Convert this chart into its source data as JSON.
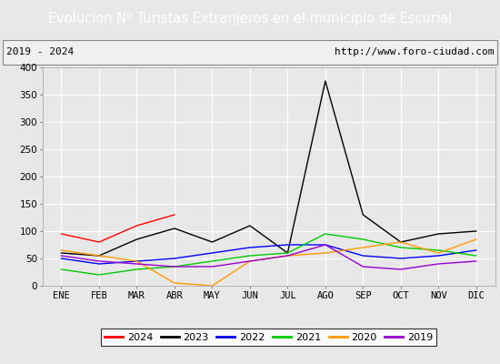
{
  "title": "Evolucion Nº Turistas Extranjeros en el municipio de Escurial",
  "subtitle_left": "2019 - 2024",
  "subtitle_right": "http://www.foro-ciudad.com",
  "x_labels": [
    "ENE",
    "FEB",
    "MAR",
    "ABR",
    "MAY",
    "JUN",
    "JUL",
    "AGO",
    "SEP",
    "OCT",
    "NOV",
    "DIC"
  ],
  "ylim": [
    0,
    400
  ],
  "yticks": [
    0,
    50,
    100,
    150,
    200,
    250,
    300,
    350,
    400
  ],
  "series": {
    "2024": {
      "color": "#ff0000",
      "values": [
        95,
        80,
        110,
        130,
        null,
        null,
        null,
        null,
        null,
        null,
        null,
        null
      ]
    },
    "2023": {
      "color": "#000000",
      "values": [
        60,
        55,
        85,
        105,
        80,
        110,
        60,
        375,
        130,
        80,
        95,
        100
      ]
    },
    "2022": {
      "color": "#0000ff",
      "values": [
        50,
        40,
        45,
        50,
        60,
        70,
        75,
        75,
        55,
        50,
        55,
        65
      ]
    },
    "2021": {
      "color": "#00cc00",
      "values": [
        30,
        20,
        30,
        35,
        45,
        55,
        60,
        95,
        85,
        70,
        65,
        55
      ]
    },
    "2020": {
      "color": "#ff9900",
      "values": [
        65,
        55,
        45,
        5,
        0,
        45,
        55,
        60,
        70,
        80,
        60,
        85
      ]
    },
    "2019": {
      "color": "#9900cc",
      "values": [
        55,
        45,
        40,
        35,
        35,
        45,
        55,
        75,
        35,
        30,
        40,
        45
      ]
    }
  },
  "title_bg_color": "#4472c4",
  "title_font_color": "#ffffff",
  "plot_bg_color": "#e8e8e8",
  "fig_bg_color": "#e8e8e8",
  "subtitle_bg_color": "#f0f0f0",
  "grid_color": "#ffffff",
  "legend_order": [
    "2024",
    "2023",
    "2022",
    "2021",
    "2020",
    "2019"
  ],
  "title_fontsize": 10.5,
  "subtitle_fontsize": 8,
  "tick_fontsize": 7.5,
  "legend_fontsize": 8
}
